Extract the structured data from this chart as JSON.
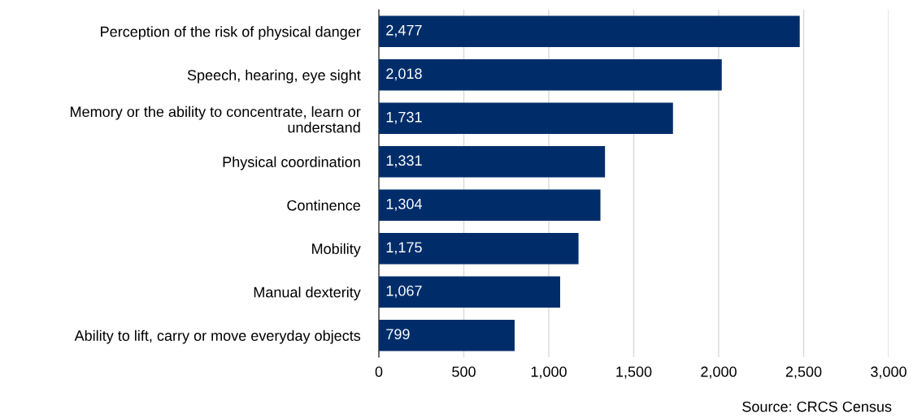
{
  "chart_data": {
    "type": "bar",
    "orientation": "horizontal",
    "categories": [
      "Perception of the risk of physical danger",
      "Speech, hearing, eye sight",
      "Memory or the ability to concentrate, learn or\nunderstand",
      "Physical coordination",
      "Continence",
      "Mobility",
      "Manual dexterity",
      "Ability to lift, carry or move everyday objects"
    ],
    "values": [
      2477,
      2018,
      1731,
      1331,
      1304,
      1175,
      1067,
      799
    ],
    "value_labels": [
      "2,477",
      "2,018",
      "1,731",
      "1,331",
      "1,304",
      "1,175",
      "1,067",
      "799"
    ],
    "color": "#002d6a",
    "xlim": [
      0,
      3000
    ],
    "xticks": [
      0,
      {
        "value": 500,
        "label": "500"
      },
      {
        "value": 1000,
        "label": "1,000"
      },
      {
        "value": 1500,
        "label": "1,500"
      },
      {
        "value": 2000,
        "label": "2,000"
      },
      {
        "value": 2500,
        "label": "2,500"
      },
      {
        "value": 3000,
        "label": "3,000"
      }
    ],
    "grid": "x",
    "legend": false,
    "annotations": [
      "Source: CRCS Census"
    ]
  }
}
